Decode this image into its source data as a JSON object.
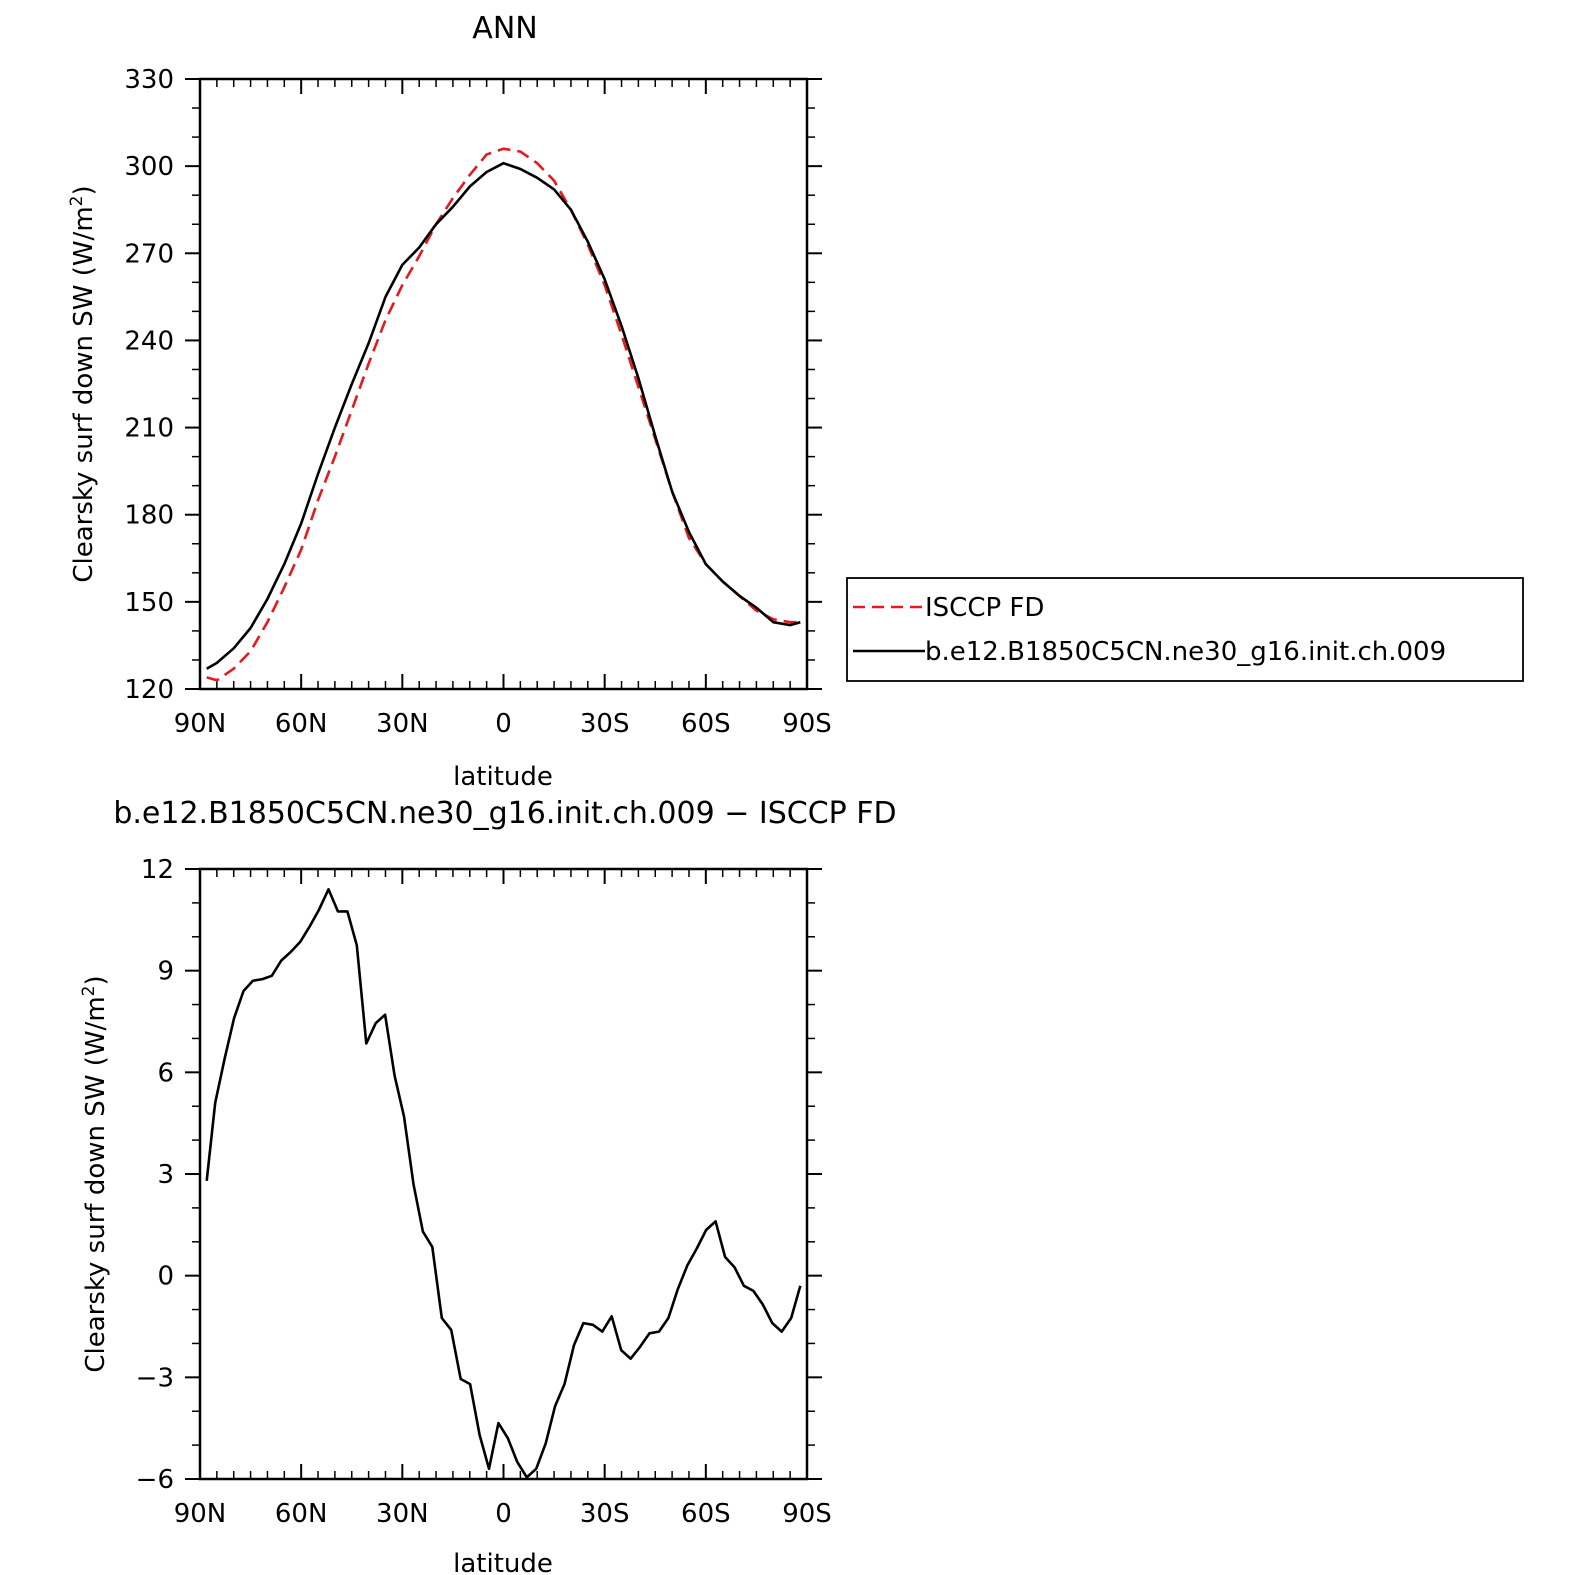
{
  "chart_data": [
    {
      "type": "line",
      "title": "ANN",
      "xlabel": "latitude",
      "ylabel": "Clearsky surf down SW (W/m",
      "ylabel_sup": "2",
      "ylabel_close": ")",
      "xlim": [
        90,
        -90
      ],
      "ylim": [
        120,
        330
      ],
      "x_ticks": [
        90,
        60,
        30,
        0,
        -30,
        -60,
        -90
      ],
      "x_tick_labels": [
        "90N",
        "60N",
        "30N",
        "0",
        "30S",
        "60S",
        "90S"
      ],
      "y_ticks": [
        120,
        150,
        180,
        210,
        240,
        270,
        300,
        330
      ],
      "y_tick_labels": [
        "120",
        "150",
        "180",
        "210",
        "240",
        "270",
        "300",
        "330"
      ],
      "legend_position": "right",
      "series": [
        {
          "name": "ISCCP FD",
          "color": "#e41a1c",
          "dash": "dashed",
          "x": [
            88,
            85,
            80,
            75,
            70,
            65,
            60,
            55,
            50,
            45,
            40,
            35,
            30,
            25,
            20,
            15,
            10,
            5,
            0,
            -5,
            -10,
            -15,
            -20,
            -25,
            -30,
            -35,
            -40,
            -45,
            -50,
            -55,
            -60,
            -65,
            -70,
            -75,
            -80,
            -85,
            -88
          ],
          "y": [
            124,
            123,
            127,
            133,
            143,
            155,
            168,
            185,
            200,
            216,
            232,
            247,
            259,
            269,
            280,
            289,
            297,
            304,
            306,
            305,
            301,
            295,
            285,
            273,
            259,
            242,
            224,
            206,
            188,
            172,
            163,
            157,
            152,
            147,
            144,
            143,
            143
          ]
        },
        {
          "name": "b.e12.B1850C5CN.ne30_g16.init.ch.009",
          "color": "#000000",
          "dash": "solid",
          "x": [
            88,
            85,
            80,
            75,
            70,
            65,
            60,
            55,
            50,
            45,
            40,
            35,
            30,
            25,
            20,
            15,
            10,
            5,
            0,
            -5,
            -10,
            -15,
            -20,
            -25,
            -30,
            -35,
            -40,
            -45,
            -50,
            -55,
            -60,
            -65,
            -70,
            -75,
            -80,
            -85,
            -88
          ],
          "y": [
            127,
            129,
            134,
            141,
            151,
            163,
            177,
            194,
            210,
            225,
            239,
            255,
            266,
            272,
            280,
            286,
            293,
            298,
            301,
            299,
            296,
            292,
            285,
            274,
            261,
            245,
            227,
            207,
            188,
            174,
            163,
            157,
            152,
            148,
            143,
            142,
            143
          ]
        }
      ]
    },
    {
      "type": "line",
      "title": "b.e12.B1850C5CN.ne30_g16.init.ch.009 − ISCCP FD",
      "xlabel": "latitude",
      "ylabel": "Clearsky surf down SW (W/m",
      "ylabel_sup": "2",
      "ylabel_close": ")",
      "xlim": [
        90,
        -90
      ],
      "ylim": [
        -6,
        12
      ],
      "x_ticks": [
        90,
        60,
        30,
        0,
        -30,
        -60,
        -90
      ],
      "x_tick_labels": [
        "90N",
        "60N",
        "30N",
        "0",
        "30S",
        "60S",
        "90S"
      ],
      "y_ticks": [
        -6,
        -3,
        0,
        3,
        6,
        9,
        12
      ],
      "y_tick_labels": [
        "−6",
        "−3",
        "0",
        "3",
        "6",
        "9",
        "12"
      ],
      "series": [
        {
          "color": "#000000",
          "dash": "solid",
          "x": [
            88,
            85.5,
            82.7,
            79.9,
            77.1,
            74.3,
            71.5,
            68.7,
            65.9,
            63.1,
            60.3,
            57.5,
            54.7,
            51.9,
            49.1,
            46.3,
            43.5,
            40.7,
            37.9,
            35.1,
            32.3,
            29.5,
            26.7,
            23.9,
            21.1,
            18.3,
            15.5,
            12.7,
            9.9,
            7.1,
            4.3,
            1.5,
            -1.3,
            -4.1,
            -6.9,
            -9.7,
            -12.5,
            -15.3,
            -18.1,
            -20.9,
            -23.7,
            -26.5,
            -29.3,
            -32.1,
            -34.9,
            -37.7,
            -40.5,
            -43.3,
            -46.1,
            -48.9,
            -51.7,
            -54.5,
            -57.3,
            -60.1,
            -62.9,
            -65.7,
            -68.5,
            -71.3,
            -74.1,
            -76.9,
            -79.7,
            -82.5,
            -85.3,
            -88
          ],
          "y": [
            2.8,
            5.1,
            6.4,
            7.6,
            8.4,
            8.7,
            8.75,
            8.85,
            9.3,
            9.55,
            9.85,
            10.3,
            10.8,
            11.4,
            10.75,
            10.75,
            9.75,
            6.85,
            7.45,
            7.7,
            5.9,
            4.7,
            2.7,
            1.3,
            0.85,
            -1.25,
            -1.6,
            -3.05,
            -3.2,
            -4.7,
            -5.7,
            -4.35,
            -4.8,
            -5.5,
            -5.95,
            -5.7,
            -4.95,
            -3.85,
            -3.2,
            -2.05,
            -1.4,
            -1.45,
            -1.65,
            -1.2,
            -2.2,
            -2.45,
            -2.1,
            -1.7,
            -1.65,
            -1.25,
            -0.4,
            0.3,
            0.8,
            1.35,
            1.6,
            0.55,
            0.25,
            -0.3,
            -0.45,
            -0.85,
            -1.4,
            -1.65,
            -1.25,
            -0.3
          ]
        }
      ]
    }
  ]
}
